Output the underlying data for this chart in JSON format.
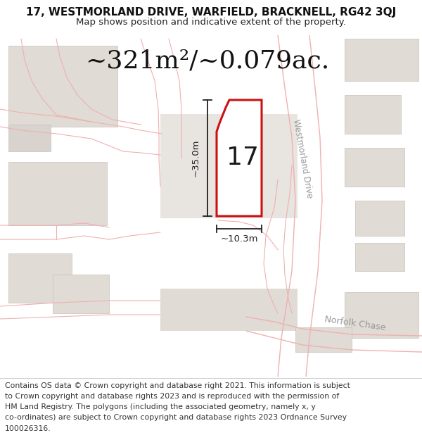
{
  "title_line1": "17, WESTMORLAND DRIVE, WARFIELD, BRACKNELL, RG42 3QJ",
  "title_line2": "Map shows position and indicative extent of the property.",
  "area_text": "~321m²/~0.079ac.",
  "label_number": "17",
  "dim_width": "~10.3m",
  "dim_height": "~35.0m",
  "footer_lines": [
    "Contains OS data © Crown copyright and database right 2021. This information is subject",
    "to Crown copyright and database rights 2023 and is reproduced with the permission of",
    "HM Land Registry. The polygons (including the associated geometry, namely x, y",
    "co-ordinates) are subject to Crown copyright and database rights 2023 Ordnance Survey",
    "100026316."
  ],
  "map_bg": "#f8f7f5",
  "plot_stroke": "#cc1111",
  "road_color": "#f0b0b0",
  "road_color_dark": "#e09090",
  "building_fill": "#e0dbd5",
  "building_edge": "#c8c0b8",
  "road_label_color": "#999999",
  "dim_color": "#222222",
  "text_color": "#111111",
  "title_fontsize": 11,
  "subtitle_fontsize": 9.5,
  "area_fontsize": 26,
  "label_fontsize": 26,
  "dim_fontsize": 9.5,
  "footer_fontsize": 7.8,
  "road_lw": 0.8,
  "plot_lw": 2.2,
  "dim_lw": 1.3
}
